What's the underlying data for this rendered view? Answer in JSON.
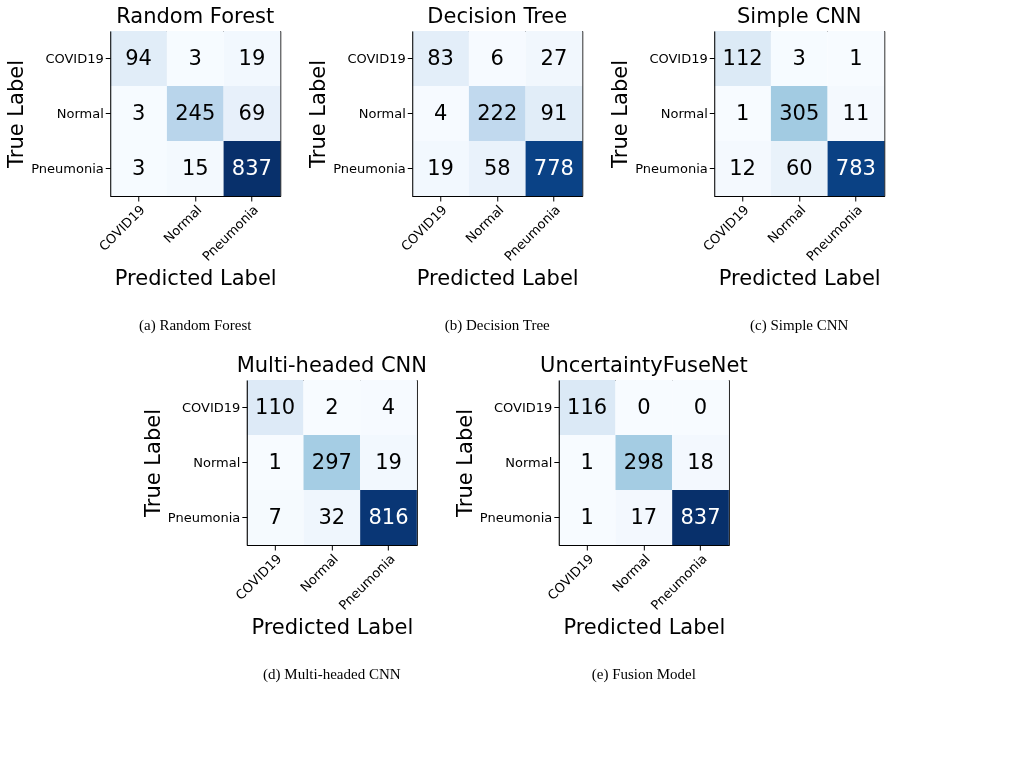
{
  "chart_data": [
    {
      "type": "heatmap",
      "title": "Random Forest",
      "xlabel": "Predicted Label",
      "ylabel": "True Label",
      "categories": [
        "COVID19",
        "Normal",
        "Pneumonia"
      ],
      "y_categories": [
        "COVID19",
        "Normal",
        "Pneumonia"
      ],
      "cells": [
        [
          94,
          3,
          19
        ],
        [
          3,
          245,
          69
        ],
        [
          3,
          15,
          837
        ]
      ],
      "data_labels": true,
      "annotations": [
        "(a) Random Forest"
      ]
    },
    {
      "type": "heatmap",
      "title": "Decision Tree",
      "xlabel": "Predicted Label",
      "ylabel": "True Label",
      "categories": [
        "COVID19",
        "Normal",
        "Pneumonia"
      ],
      "y_categories": [
        "COVID19",
        "Normal",
        "Pneumonia"
      ],
      "cells": [
        [
          83,
          6,
          27
        ],
        [
          4,
          222,
          91
        ],
        [
          19,
          58,
          778
        ]
      ],
      "data_labels": true,
      "annotations": [
        "(b) Decision Tree"
      ]
    },
    {
      "type": "heatmap",
      "title": "Simple CNN",
      "xlabel": "Predicted Label",
      "ylabel": "True Label",
      "categories": [
        "COVID19",
        "Normal",
        "Pneumonia"
      ],
      "y_categories": [
        "COVID19",
        "Normal",
        "Pneumonia"
      ],
      "cells": [
        [
          112,
          3,
          1
        ],
        [
          1,
          305,
          11
        ],
        [
          12,
          60,
          783
        ]
      ],
      "data_labels": true,
      "annotations": [
        "(c) Simple CNN"
      ]
    },
    {
      "type": "heatmap",
      "title": "Multi-headed CNN",
      "xlabel": "Predicted Label",
      "ylabel": "True Label",
      "categories": [
        "COVID19",
        "Normal",
        "Pneumonia"
      ],
      "y_categories": [
        "COVID19",
        "Normal",
        "Pneumonia"
      ],
      "cells": [
        [
          110,
          2,
          4
        ],
        [
          1,
          297,
          19
        ],
        [
          7,
          32,
          816
        ]
      ],
      "data_labels": true,
      "annotations": [
        "(d) Multi-headed CNN"
      ]
    },
    {
      "type": "heatmap",
      "title": "UncertaintyFuseNet",
      "xlabel": "Predicted Label",
      "ylabel": "True Label",
      "categories": [
        "COVID19",
        "Normal",
        "Pneumonia"
      ],
      "y_categories": [
        "COVID19",
        "Normal",
        "Pneumonia"
      ],
      "cells": [
        [
          116,
          0,
          0
        ],
        [
          1,
          298,
          18
        ],
        [
          1,
          17,
          837
        ]
      ],
      "data_labels": true,
      "annotations": [
        "(e) Fusion Model"
      ]
    }
  ]
}
